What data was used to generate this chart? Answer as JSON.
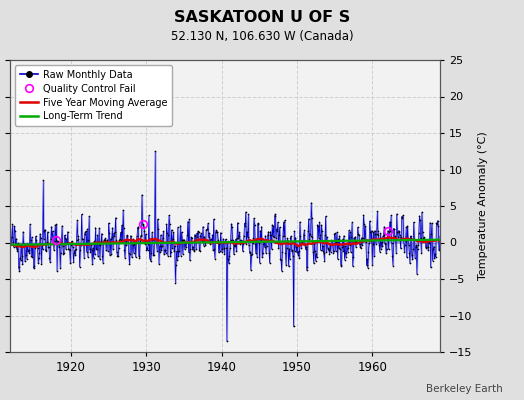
{
  "title": "SASKATOON U OF S",
  "subtitle": "52.130 N, 106.630 W (Canada)",
  "ylabel": "Temperature Anomaly (°C)",
  "watermark": "Berkeley Earth",
  "ylim": [
    -15,
    25
  ],
  "yticks": [
    -15,
    -10,
    -5,
    0,
    5,
    10,
    15,
    20,
    25
  ],
  "xlim": [
    1912,
    1969
  ],
  "xticks": [
    1920,
    1930,
    1940,
    1950,
    1960
  ],
  "year_start": 1912,
  "year_end": 1969,
  "seed": 42,
  "bg_color": "#e0e0e0",
  "plot_bg_color": "#f2f2f2",
  "line_color": "#0000cc",
  "moving_avg_color": "#dd0000",
  "trend_color": "#00aa00",
  "qc_fail_color": "#ff00ff",
  "marker_color": "#000000",
  "fill_alpha": 0.25,
  "qc_fail_indices": [
    72,
    210,
    600
  ],
  "trend_slope": 0.012,
  "trend_intercept": -0.3
}
